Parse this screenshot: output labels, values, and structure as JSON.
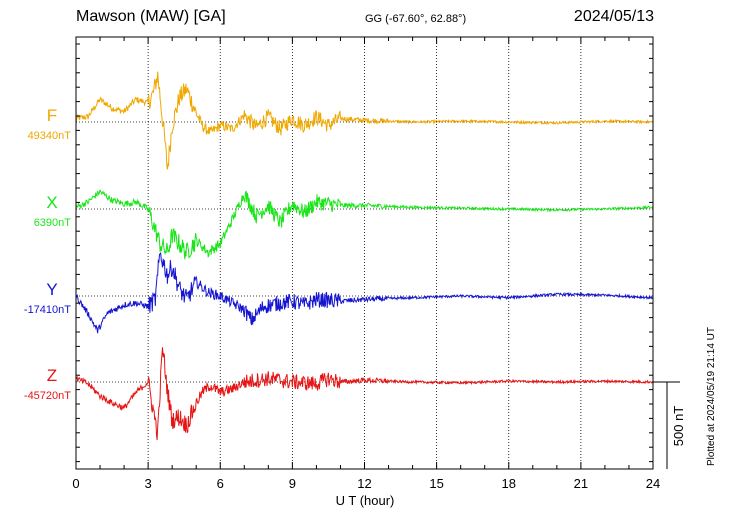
{
  "header": {
    "station": "Mawson (MAW)  [GA]",
    "coords": "GG (-67.60°,  62.88°)",
    "date": "2024/05/13"
  },
  "footer_note": "Plotted at 2024/05/19 21:14 UT",
  "colors": {
    "F": "#f0a800",
    "X": "#19e619",
    "Y": "#1414d2",
    "Z": "#e61414",
    "axis": "#000000",
    "grid": "#000000"
  },
  "chart_data": {
    "type": "line",
    "title": "Mawson (MAW)  [GA]",
    "xlabel": "U T (hour)",
    "ylabel": "",
    "xlim": [
      0,
      24
    ],
    "xticks": [
      "0",
      "3",
      "6",
      "9",
      "12",
      "15",
      "18",
      "21",
      "24"
    ],
    "scale_bar_label": "500 nT",
    "scale_bar_value_nT": 500,
    "series": [
      {
        "name": "F",
        "baseline_label": "49340nT",
        "baseline_nT": 49340,
        "x": [
          0,
          0.5,
          1,
          1.5,
          2,
          2.5,
          3,
          3.2,
          3.4,
          3.5,
          3.7,
          3.8,
          4,
          4.3,
          4.6,
          5,
          5.3,
          5.6,
          6,
          6.5,
          7,
          7.5,
          8,
          8.5,
          9,
          9.5,
          10,
          10.5,
          11,
          12,
          14,
          16,
          18,
          20,
          22,
          24
        ],
        "dev": [
          20,
          30,
          130,
          80,
          60,
          130,
          110,
          160,
          270,
          150,
          -120,
          -270,
          -20,
          140,
          190,
          50,
          -30,
          -60,
          -20,
          -40,
          40,
          -30,
          30,
          -40,
          20,
          -20,
          30,
          -20,
          20,
          10,
          0,
          5,
          0,
          -5,
          5,
          0
        ]
      },
      {
        "name": "X",
        "baseline_label": "6390nT",
        "baseline_nT": 6390,
        "x": [
          0,
          0.5,
          1,
          1.5,
          2,
          2.5,
          3,
          3.2,
          3.5,
          3.8,
          4,
          4.3,
          4.6,
          5,
          5.5,
          6,
          6.5,
          7,
          7.5,
          8,
          8.5,
          9,
          9.5,
          10,
          11,
          12,
          14,
          16,
          18,
          20,
          22,
          24
        ],
        "dev": [
          10,
          40,
          100,
          50,
          30,
          40,
          0,
          -80,
          -200,
          -250,
          -150,
          -200,
          -250,
          -180,
          -250,
          -200,
          -60,
          90,
          -40,
          20,
          -80,
          30,
          -20,
          40,
          20,
          20,
          10,
          5,
          0,
          -5,
          0,
          10
        ]
      },
      {
        "name": "Y",
        "baseline_label": "-17410nT",
        "baseline_nT": -17410,
        "x": [
          0,
          0.5,
          0.9,
          1.3,
          2,
          2.5,
          3,
          3.3,
          3.5,
          3.8,
          4,
          4.3,
          4.6,
          5,
          5.5,
          6,
          6.5,
          7,
          7.3,
          7.8,
          8.5,
          9,
          9.5,
          10,
          11,
          12,
          14,
          16,
          18,
          20,
          22,
          24
        ],
        "dev": [
          0,
          -100,
          -200,
          -100,
          -50,
          -40,
          -60,
          -20,
          250,
          120,
          170,
          40,
          -20,
          80,
          20,
          0,
          -40,
          -80,
          -140,
          -60,
          -40,
          -30,
          -50,
          -20,
          -30,
          -20,
          -10,
          0,
          -10,
          10,
          5,
          -10
        ]
      },
      {
        "name": "Z",
        "baseline_label": "-45720nT",
        "baseline_nT": -45720,
        "x": [
          0,
          0.5,
          1,
          1.5,
          2,
          2.5,
          3,
          3.2,
          3.4,
          3.6,
          3.8,
          4,
          4.3,
          4.6,
          5,
          5.3,
          5.6,
          6,
          6.5,
          7,
          8,
          9,
          10,
          10.5,
          11,
          12,
          14,
          16,
          18,
          20,
          22,
          24
        ],
        "dev": [
          20,
          -10,
          -80,
          -120,
          -150,
          -60,
          0,
          -150,
          -300,
          200,
          -50,
          -220,
          -200,
          -250,
          -120,
          -50,
          -20,
          -60,
          -40,
          0,
          20,
          0,
          -10,
          20,
          0,
          10,
          0,
          -5,
          5,
          0,
          5,
          0
        ]
      }
    ]
  }
}
